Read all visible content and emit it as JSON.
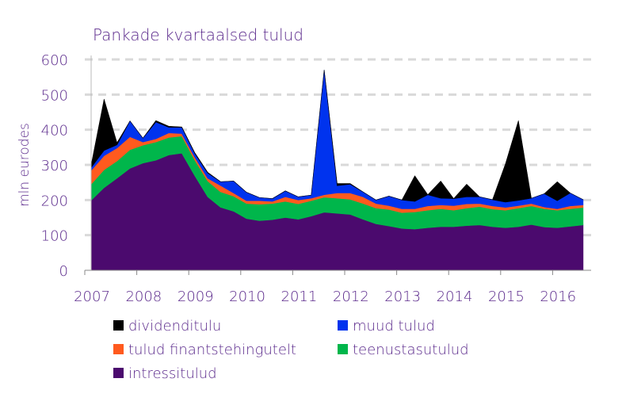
{
  "chart_data": {
    "type": "area",
    "stacked": true,
    "title": "Pankade kvartaalsed tulud",
    "ylabel": "mln eurodes",
    "xlabel": "",
    "ylim": [
      0,
      600
    ],
    "yticks": [
      "0",
      "100",
      "200",
      "300",
      "400",
      "500",
      "600"
    ],
    "ytick_values": [
      0,
      100,
      200,
      300,
      400,
      500,
      600
    ],
    "xtick_labels": [
      "2007",
      "2008",
      "2009",
      "2010",
      "2011",
      "2012",
      "2013",
      "2014",
      "2015",
      "2016"
    ],
    "x_start": "2007Q1",
    "x_end": "2016Q3",
    "grid": "horizontal dashed",
    "legend_position": "bottom",
    "series": [
      {
        "name": "intressitulud",
        "color": "#4b0a6e",
        "values": [
          199,
          235,
          262,
          290,
          305,
          313,
          328,
          333,
          269,
          209,
          179,
          168,
          147,
          141,
          144,
          150,
          145,
          154,
          165,
          162,
          159,
          145,
          132,
          126,
          119,
          117,
          121,
          124,
          124,
          127,
          129,
          124,
          121,
          124,
          130,
          123,
          121,
          125,
          129
        ]
      },
      {
        "name": "teenustasutulud",
        "color": "#00b64b",
        "values": [
          46,
          51,
          49,
          53,
          51,
          52,
          50,
          49,
          45,
          45,
          44,
          43,
          43,
          47,
          46,
          46,
          44,
          44,
          43,
          43,
          43,
          45,
          45,
          47,
          45,
          49,
          50,
          51,
          47,
          50,
          52,
          50,
          50,
          53,
          53,
          52,
          50,
          50,
          50
        ]
      },
      {
        "name": "tulud finantstehingutelt",
        "color": "#ff5a1e",
        "values": [
          39,
          40,
          37,
          37,
          9,
          9,
          13,
          7,
          8,
          8,
          18,
          9,
          8,
          10,
          6,
          13,
          11,
          7,
          7,
          15,
          18,
          19,
          13,
          11,
          11,
          9,
          12,
          11,
          13,
          12,
          9,
          9,
          8,
          7,
          7,
          5,
          4,
          8,
          7
        ]
      },
      {
        "name": "muud tulud",
        "color": "#0033ee",
        "values": [
          8,
          15,
          9,
          45,
          11,
          48,
          16,
          18,
          11,
          15,
          11,
          34,
          24,
          9,
          8,
          17,
          9,
          9,
          355,
          21,
          25,
          14,
          10,
          27,
          25,
          21,
          32,
          19,
          20,
          20,
          19,
          18,
          15,
          15,
          15,
          38,
          23,
          37,
          15
        ]
      },
      {
        "name": "dividenditulu",
        "color": "#000000",
        "values": [
          7,
          146,
          6,
          0,
          0,
          4,
          3,
          1,
          2,
          2,
          0,
          0,
          0,
          0,
          0,
          0,
          0,
          0,
          0,
          6,
          2,
          0,
          0,
          0,
          0,
          73,
          0,
          49,
          0,
          36,
          0,
          0,
          109,
          227,
          0,
          0,
          54,
          0,
          0
        ]
      }
    ],
    "legend": [
      {
        "label": "dividenditulu",
        "color": "#000000"
      },
      {
        "label": "muud tulud",
        "color": "#0033ee"
      },
      {
        "label": "tulud finantstehingutelt",
        "color": "#ff5a1e"
      },
      {
        "label": "teenustasutulud",
        "color": "#00b64b"
      },
      {
        "label": "intressitulud",
        "color": "#4b0a6e"
      }
    ]
  }
}
